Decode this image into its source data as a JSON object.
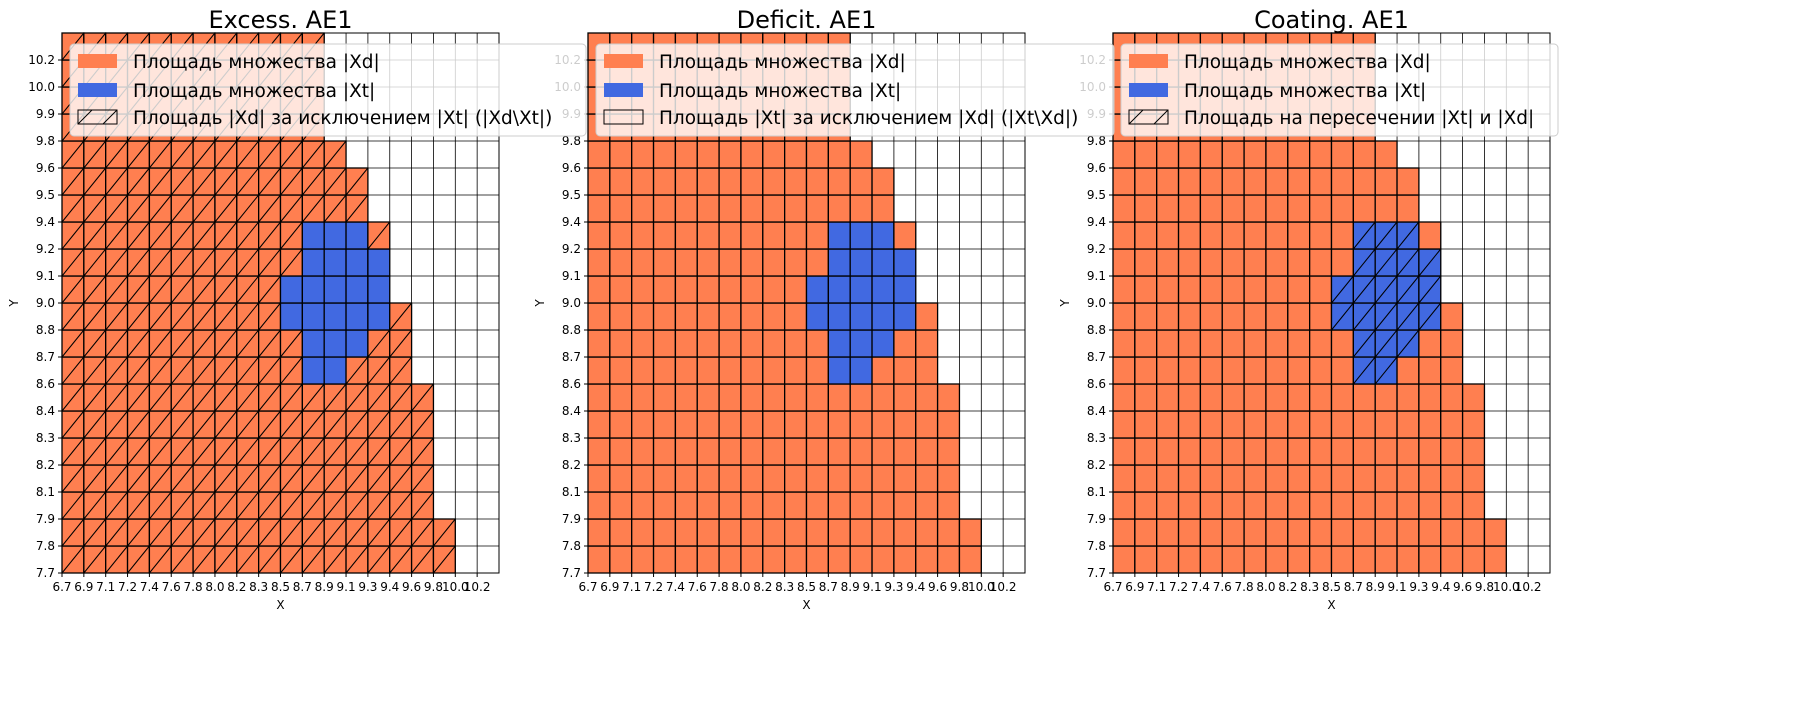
{
  "colors": {
    "xd": "#ff7f50",
    "xt": "#4169e1",
    "grid": "#000000",
    "legend_bg": "#ffffff"
  },
  "chart_data": [
    {
      "type": "heatmap",
      "title": "Excess. AE1",
      "xlabel": "X",
      "ylabel": "Y",
      "hatch_on": "xd_minus_xt",
      "legend": [
        "Площадь множества |Xd|",
        "Площадь множества  |Xt|",
        "Площадь |Xd| за исключением |Xt| (|Xd\\Xt|)"
      ],
      "legend_position": "upper-left"
    },
    {
      "type": "heatmap",
      "title": "Deficit. AE1",
      "xlabel": "X",
      "ylabel": "Y",
      "hatch_on": "xt_minus_xd",
      "legend": [
        "Площадь множества |Xd|",
        "Площадь множества  |Xt|",
        "Площадь |Xt| за исключением |Xd| (|Xt\\Xd|)"
      ],
      "legend_position": "upper-left"
    },
    {
      "type": "heatmap",
      "title": "Coating. AE1",
      "xlabel": "X",
      "ylabel": "Y",
      "hatch_on": "intersection",
      "legend": [
        "Площадь множества |Xd|",
        "Площадь множества  |Xt|",
        "Площадь на пересечении |Xt| и |Xd|"
      ],
      "legend_position": "upper-left"
    }
  ],
  "grid": {
    "x_ticks": [
      "6.7",
      "6.9",
      "7.1",
      "7.2",
      "7.4",
      "7.6",
      "7.8",
      "8.0",
      "8.2",
      "8.3",
      "8.5",
      "8.7",
      "8.9",
      "9.1",
      "9.3",
      "9.4",
      "9.6",
      "9.8",
      "10.0",
      "10.2"
    ],
    "y_ticks": [
      "7.7",
      "7.8",
      "7.9",
      "8.1",
      "8.2",
      "8.3",
      "8.4",
      "8.6",
      "8.7",
      "8.8",
      "9.0",
      "9.1",
      "9.2",
      "9.4",
      "9.5",
      "9.6",
      "9.8",
      "9.9",
      "10.0",
      "10.2"
    ],
    "xd_column_top": {
      "6.7": "10.2",
      "6.9": "10.2",
      "7.1": "10.2",
      "7.2": "10.2",
      "7.4": "10.2",
      "7.6": "10.2",
      "7.8": "10.2",
      "8.0": "10.2",
      "8.2": "10.2",
      "8.3": "10.2",
      "8.5": "10.2",
      "8.7": "10.2",
      "8.9": "9.6",
      "9.1": "9.5",
      "9.3": "9.2",
      "9.4": "8.8",
      "9.6": "8.4",
      "9.8": "7.8"
    },
    "xt_cells": [
      {
        "y": "9.2",
        "x": [
          "8.7",
          "8.9",
          "9.1"
        ]
      },
      {
        "y": "9.1",
        "x": [
          "8.7",
          "8.9",
          "9.1",
          "9.3"
        ]
      },
      {
        "y": "9.0",
        "x": [
          "8.5",
          "8.7",
          "8.9",
          "9.1",
          "9.3"
        ]
      },
      {
        "y": "8.8",
        "x": [
          "8.5",
          "8.7",
          "8.9",
          "9.1",
          "9.3"
        ]
      },
      {
        "y": "8.7",
        "x": [
          "8.7",
          "8.9",
          "9.1"
        ]
      },
      {
        "y": "8.6",
        "x": [
          "8.7",
          "8.9"
        ]
      }
    ]
  }
}
